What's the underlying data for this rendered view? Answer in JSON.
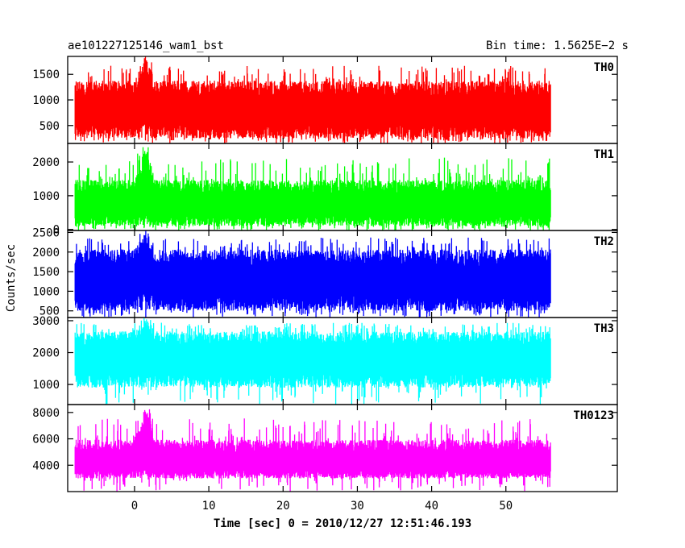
{
  "header": {
    "left_title": "ae101227125146_wam1_bst",
    "right_title": "Bin time: 1.5625E−2 s"
  },
  "axes": {
    "xlabel": "Time [sec] 0 = 2010/12/27 12:51:46.193",
    "ylabel": "Counts/sec"
  },
  "chart_data": {
    "type": "line",
    "title": "ae101227125146_wam1_bst",
    "subtitle": "Bin time: 1.5625E−2 s",
    "xlabel": "Time [sec] 0 = 2010/12/27 12:51:46.193",
    "ylabel": "Counts/sec",
    "xlim": [
      -9,
      65
    ],
    "data_x_range": [
      -8,
      56
    ],
    "x_ticks": [
      0,
      10,
      20,
      30,
      40,
      50
    ],
    "x_tick_labels": [
      "0",
      "10",
      "20",
      "30",
      "40",
      "50"
    ],
    "grid": false,
    "series": [
      {
        "name": "TH0",
        "color": "#ff0000",
        "ylim": [
          150,
          1850
        ],
        "y_ticks": [
          500,
          1000,
          1500
        ],
        "y_tick_labels": [
          "500",
          "1000",
          "1500"
        ],
        "baseline": 780,
        "typical_low": 250,
        "typical_high": 1400,
        "burst": {
          "start": 0,
          "end": 2.5,
          "peak_time": 1.5,
          "peak_value": 1850
        }
      },
      {
        "name": "TH1",
        "color": "#00ff00",
        "ylim": [
          -30,
          2550
        ],
        "y_ticks": [
          0,
          1000,
          2000
        ],
        "y_tick_labels": [
          "0",
          "1000",
          "2000"
        ],
        "baseline": 700,
        "typical_low": 100,
        "typical_high": 1500,
        "burst": {
          "start": 0,
          "end": 2.5,
          "peak_time": 1.5,
          "peak_value": 2500
        }
      },
      {
        "name": "TH2",
        "color": "#0000ff",
        "ylim": [
          330,
          2550
        ],
        "y_ticks": [
          500,
          1000,
          1500,
          2000,
          2500
        ],
        "y_tick_labels": [
          "500",
          "1000",
          "1500",
          "2000",
          "2500"
        ],
        "baseline": 1250,
        "typical_low": 500,
        "typical_high": 2100,
        "burst": {
          "start": 0,
          "end": 2.5,
          "peak_time": 1.5,
          "peak_value": 2550
        }
      },
      {
        "name": "TH3",
        "color": "#00ffff",
        "ylim": [
          370,
          3100
        ],
        "y_ticks": [
          1000,
          2000,
          3000
        ],
        "y_tick_labels": [
          "1000",
          "2000",
          "3000"
        ],
        "baseline": 1800,
        "typical_low": 900,
        "typical_high": 2700,
        "burst": {
          "start": 0,
          "end": 2.5,
          "peak_time": 1.5,
          "peak_value": 3100
        }
      },
      {
        "name": "TH0123",
        "color": "#ff00ff",
        "ylim": [
          2000,
          8600
        ],
        "y_ticks": [
          4000,
          6000,
          8000
        ],
        "y_tick_labels": [
          "4000",
          "6000",
          "8000"
        ],
        "baseline": 4200,
        "typical_low": 3000,
        "typical_high": 6000,
        "burst": {
          "start": 0,
          "end": 2.5,
          "peak_time": 1.5,
          "peak_value": 8600
        }
      }
    ]
  }
}
